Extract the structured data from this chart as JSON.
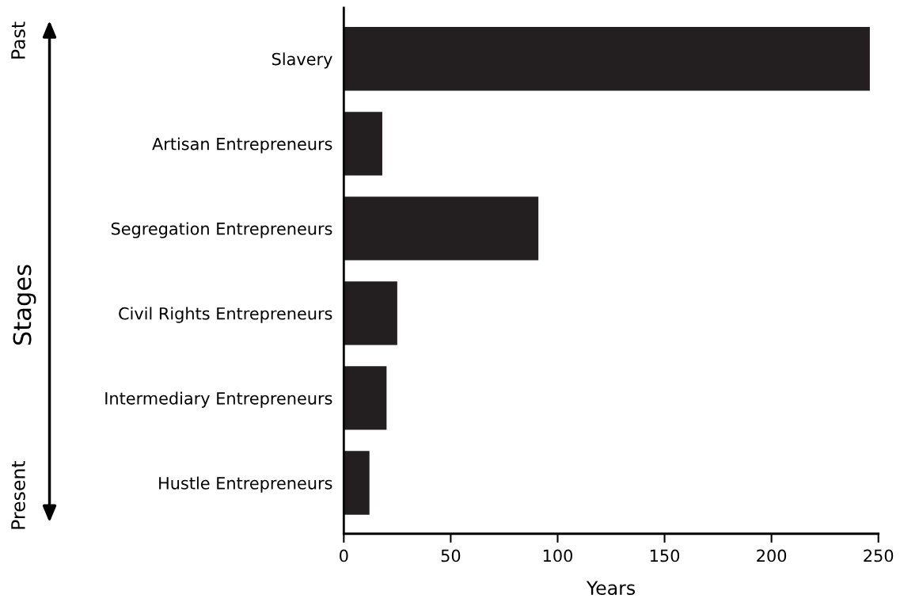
{
  "chart_data": {
    "type": "bar",
    "orientation": "horizontal",
    "xlabel": "Years",
    "ylabel": "Stages",
    "categories": [
      "Slavery",
      "Artisan Entrepreneurs",
      "Segregation Entrepreneurs",
      "Civil Rights Entrepreneurs",
      "Intermediary Entrepreneurs",
      "Hustle Entrepreneurs"
    ],
    "values": [
      246,
      18,
      91,
      25,
      20,
      12
    ],
    "color": "#231f20",
    "xlim": [
      0,
      250
    ],
    "xticks": [
      0,
      50,
      100,
      150,
      200,
      250
    ],
    "grid": false,
    "legend": false,
    "annotations": [
      "Past",
      "Present"
    ]
  }
}
